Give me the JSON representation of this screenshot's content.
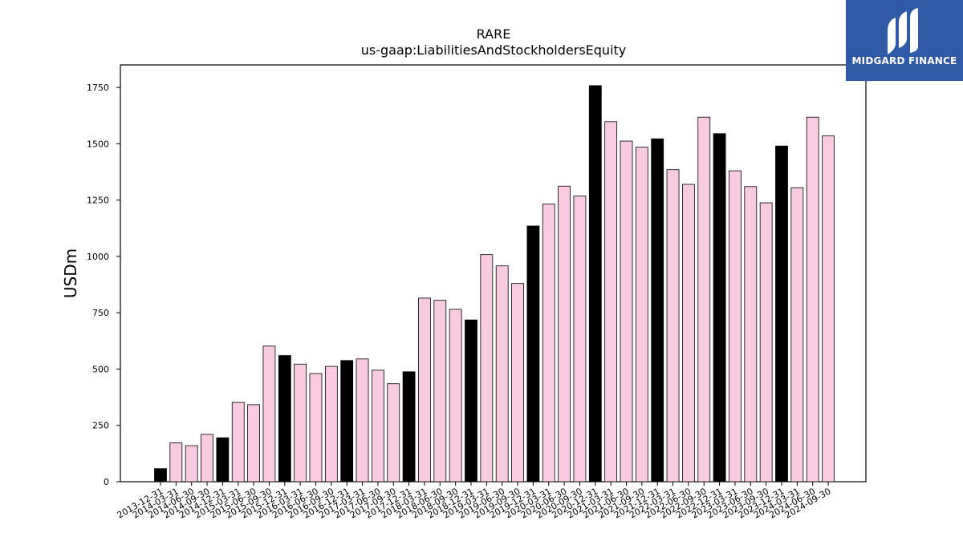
{
  "logo": {
    "text": "MIDGARD FINANCE",
    "icon": "midgard-m-logo-icon",
    "background": "#2f5aa8"
  },
  "chart_data": {
    "type": "bar",
    "title": "RARE",
    "subtitle": "us-gaap:LiabilitiesAndStockholdersEquity",
    "xlabel": "",
    "ylabel": "USDm",
    "ylim": [
      0,
      1850
    ],
    "yticks": [
      0,
      250,
      500,
      750,
      1000,
      1250,
      1500,
      1750
    ],
    "grid": false,
    "colors": {
      "annual": "#000000",
      "quarterly": "#f8cbe0",
      "edge": "#000000"
    },
    "categories": [
      "2013-12-31",
      "2014-03-31",
      "2014-06-30",
      "2014-09-30",
      "2014-12-31",
      "2015-03-31",
      "2015-06-30",
      "2015-09-30",
      "2015-12-31",
      "2016-03-31",
      "2016-06-30",
      "2016-09-30",
      "2016-12-31",
      "2017-03-31",
      "2017-06-30",
      "2017-09-30",
      "2017-12-31",
      "2018-03-31",
      "2018-06-30",
      "2018-09-30",
      "2018-12-31",
      "2019-03-31",
      "2019-06-30",
      "2019-09-30",
      "2019-12-31",
      "2020-03-31",
      "2020-06-30",
      "2020-09-30",
      "2020-12-31",
      "2021-03-31",
      "2021-06-30",
      "2021-09-30",
      "2021-12-31",
      "2022-03-31",
      "2022-06-30",
      "2022-09-30",
      "2022-12-31",
      "2023-03-31",
      "2023-06-30",
      "2023-09-30",
      "2023-12-31",
      "2024-03-31",
      "2024-06-30",
      "2024-09-30"
    ],
    "values": [
      58,
      172,
      160,
      210,
      195,
      352,
      342,
      602,
      560,
      522,
      480,
      512,
      538,
      545,
      495,
      435,
      488,
      815,
      805,
      765,
      718,
      1008,
      958,
      880,
      1135,
      1232,
      1312,
      1268,
      1758,
      1598,
      1512,
      1485,
      1522,
      1385,
      1320,
      1618,
      1545,
      1380,
      1310,
      1238,
      1490,
      1305,
      1618,
      1535
    ],
    "annual_flags": [
      true,
      false,
      false,
      false,
      true,
      false,
      false,
      false,
      true,
      false,
      false,
      false,
      true,
      false,
      false,
      false,
      true,
      false,
      false,
      false,
      true,
      false,
      false,
      false,
      true,
      false,
      false,
      false,
      true,
      false,
      false,
      false,
      true,
      false,
      false,
      false,
      true,
      false,
      false,
      false,
      true,
      false,
      false,
      false
    ]
  }
}
